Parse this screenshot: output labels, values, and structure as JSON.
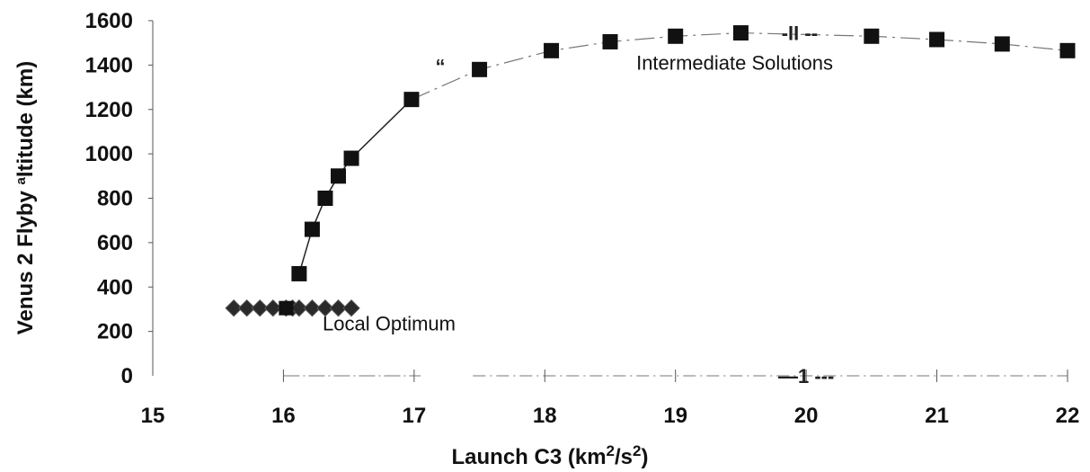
{
  "chart_data": {
    "type": "scatter",
    "xlabel": "Launch C3 (km2/s2)",
    "xlabel_parts": {
      "main": "Launch C3",
      "unit_open": "(km",
      "sup1": "2",
      "slash": "/s",
      "sup2": "2",
      "unit_close": ")"
    },
    "ylabel": "Venus 2 Flyby altitude (km)",
    "ylabel_parts": {
      "before": "Venus 2 Flyby ",
      "artifact": "a",
      "after": "ltitude (km)"
    },
    "xlim": [
      15,
      22
    ],
    "ylim": [
      0,
      1600
    ],
    "x_ticks": [
      "15",
      "16",
      "17",
      "18",
      "19",
      "20",
      "21",
      "22"
    ],
    "y_ticks": [
      "0",
      "200",
      "400",
      "600",
      "800",
      "1000",
      "1200",
      "1400",
      "1600"
    ],
    "series": [
      {
        "marker": "square",
        "color": "#111111",
        "segments": [
          {
            "x": [
              16.12,
              16.22,
              16.32,
              16.42,
              16.52,
              16.98
            ],
            "y": [
              460,
              660,
              800,
              900,
              980,
              1245
            ],
            "line": "solid"
          },
          {
            "x": [
              16.98,
              17.5,
              18.05,
              18.5,
              19.0,
              19.5,
              20.5,
              21.0,
              21.5,
              22.0
            ],
            "y": [
              1245,
              1380,
              1465,
              1505,
              1530,
              1545,
              1530,
              1515,
              1495,
              1465
            ],
            "line": "dashed"
          }
        ],
        "points": {
          "x": [
            16.12,
            16.22,
            16.32,
            16.42,
            16.52,
            16.98,
            17.5,
            18.05,
            18.5,
            19.0,
            19.5,
            20.5,
            21.0,
            21.5,
            22.0
          ],
          "y": [
            460,
            660,
            800,
            900,
            980,
            1245,
            1380,
            1465,
            1505,
            1530,
            1545,
            1530,
            1515,
            1495,
            1465
          ]
        }
      },
      {
        "marker": "diamond",
        "color": "#333333",
        "x": [
          15.62,
          15.72,
          15.82,
          15.92,
          16.02,
          16.07,
          16.12,
          16.22,
          16.32,
          16.42,
          16.52
        ],
        "y": [
          305,
          305,
          305,
          305,
          305,
          305,
          305,
          305,
          305,
          305,
          305
        ]
      }
    ],
    "extra_square": {
      "x": [
        16.02
      ],
      "y": [
        305
      ]
    },
    "annotations": [
      {
        "text": "Intermediate  Solutions",
        "x": 18.7,
        "y": 1380
      },
      {
        "text": "Local  Optimum",
        "x": 16.3,
        "y": 205
      }
    ],
    "artifacts": [
      {
        "text": "-II  --",
        "x": 19.95,
        "y": 1545
      },
      {
        "text": "“",
        "x": 17.2,
        "y": 1395
      },
      {
        "text": "—1  ---",
        "x": 20.0,
        "y": 0
      }
    ],
    "grid": false,
    "legend": "none"
  }
}
